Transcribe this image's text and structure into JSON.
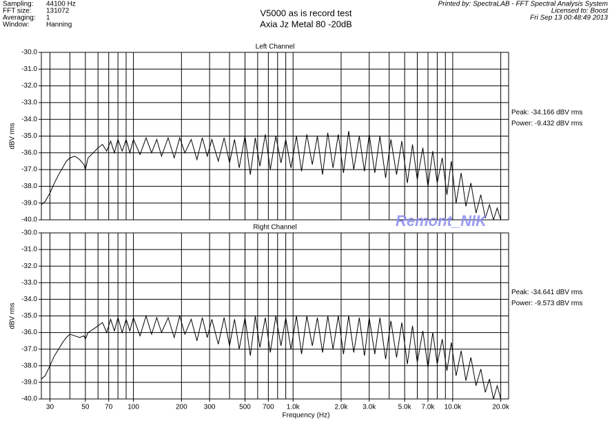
{
  "header": {
    "labels": [
      "Sampling:",
      "FFT size:",
      "Averaging:",
      "Window:"
    ],
    "values": [
      "44100 Hz",
      "131072",
      "1",
      "Hanning"
    ],
    "title": "V5000  as is record test",
    "subtitle": "Axia Jz Metal 80 -20dB",
    "printed_by": "Printed by: SpectraLAB - FFT Spectral Analysis System",
    "licensed": "Licensed to: Boost",
    "date": "Fri Sep 13 00:48:49 2013"
  },
  "watermark": "Remont_NIK",
  "chart_data": [
    {
      "type": "line",
      "title": "Left Channel",
      "ylabel": "dBV rms",
      "log_x": true,
      "grid": true,
      "annotations": [
        "Peak: -34.166 dBV rms",
        "Power: -9.432 dBV rms"
      ],
      "xlim": [
        26.5,
        22400
      ],
      "ylim": [
        -40,
        -30
      ],
      "yticks": [
        {
          "value": -30,
          "label": "-30.0"
        },
        {
          "value": -31,
          "label": "-31.0"
        },
        {
          "value": -32,
          "label": "-32.0"
        },
        {
          "value": -33,
          "label": "-33.0"
        },
        {
          "value": -34,
          "label": "-34.0"
        },
        {
          "value": -35,
          "label": "-35.0"
        },
        {
          "value": -36,
          "label": "-36.0"
        },
        {
          "value": -37,
          "label": "-37.0"
        },
        {
          "value": -38,
          "label": "-38.0"
        },
        {
          "value": -39,
          "label": "-39.0"
        },
        {
          "value": -40,
          "label": "-40.0"
        }
      ],
      "xgrid": [
        30,
        40,
        50,
        60,
        70,
        80,
        90,
        100,
        200,
        300,
        400,
        500,
        600,
        700,
        800,
        900,
        1000,
        2000,
        3000,
        4000,
        5000,
        6000,
        7000,
        8000,
        9000,
        10000,
        20000
      ],
      "series": [
        {
          "color": "#000000",
          "x": [
            26.5,
            28,
            30,
            32,
            34,
            36,
            38,
            40,
            43,
            46,
            49,
            50,
            52,
            56,
            60,
            64,
            68,
            72,
            76,
            80,
            85,
            90,
            95,
            100,
            110,
            120,
            130,
            140,
            150,
            165,
            180,
            195,
            210,
            230,
            250,
            270,
            290,
            310,
            340,
            370,
            400,
            430,
            460,
            500,
            540,
            580,
            620,
            670,
            720,
            780,
            840,
            900,
            970,
            1050,
            1130,
            1220,
            1320,
            1420,
            1530,
            1650,
            1780,
            1920,
            2070,
            2230,
            2400,
            2600,
            2800,
            3000,
            3250,
            3500,
            3800,
            4100,
            4450,
            4800,
            5200,
            5600,
            6000,
            6500,
            7000,
            7500,
            8000,
            8600,
            9200,
            9800,
            10500,
            11300,
            12100,
            13000,
            14000,
            15000,
            16000,
            17000,
            18000,
            19000,
            20000
          ],
          "values": [
            -39.1,
            -38.9,
            -38.4,
            -37.8,
            -37.3,
            -36.9,
            -36.5,
            -36.3,
            -36.2,
            -36.4,
            -36.7,
            -37.0,
            -36.3,
            -36.0,
            -35.7,
            -35.5,
            -35.9,
            -35.3,
            -36.0,
            -35.2,
            -35.9,
            -35.2,
            -36.0,
            -35.2,
            -36.1,
            -35.1,
            -36.0,
            -35.2,
            -36.2,
            -35.1,
            -36.3,
            -35.1,
            -36.0,
            -35.2,
            -36.4,
            -35.1,
            -36.2,
            -35.2,
            -36.5,
            -35.1,
            -36.6,
            -35.2,
            -36.9,
            -35.0,
            -37.3,
            -35.1,
            -36.8,
            -34.9,
            -37.0,
            -35.0,
            -36.6,
            -35.2,
            -36.9,
            -35.0,
            -37.1,
            -34.9,
            -36.7,
            -35.0,
            -37.3,
            -34.8,
            -36.9,
            -34.9,
            -37.2,
            -34.7,
            -37.0,
            -35.0,
            -37.1,
            -34.9,
            -37.2,
            -35.0,
            -37.5,
            -35.2,
            -37.3,
            -35.3,
            -37.8,
            -35.5,
            -37.6,
            -35.7,
            -38.0,
            -35.9,
            -37.8,
            -36.3,
            -38.5,
            -36.5,
            -39.0,
            -37.2,
            -39.2,
            -37.8,
            -39.6,
            -38.5,
            -39.9,
            -39.1,
            -40.0,
            -39.3,
            -40.0
          ]
        }
      ]
    },
    {
      "type": "line",
      "title": "Right Channel",
      "ylabel": "dBV rms",
      "xlabel": "Frequency (Hz)",
      "log_x": true,
      "grid": true,
      "annotations": [
        "Peak: -34.641 dBV rms",
        "Power: -9.573 dBV rms"
      ],
      "xlim": [
        26.5,
        22400
      ],
      "ylim": [
        -40,
        -30
      ],
      "yticks": [
        {
          "value": -30,
          "label": "-30.0"
        },
        {
          "value": -31,
          "label": "-31.0"
        },
        {
          "value": -32,
          "label": "-32.0"
        },
        {
          "value": -33,
          "label": "-33.0"
        },
        {
          "value": -34,
          "label": "-34.0"
        },
        {
          "value": -35,
          "label": "-35.0"
        },
        {
          "value": -36,
          "label": "-36.0"
        },
        {
          "value": -37,
          "label": "-37.0"
        },
        {
          "value": -38,
          "label": "-38.0"
        },
        {
          "value": -39,
          "label": "-39.0"
        },
        {
          "value": -40,
          "label": "-40.0"
        }
      ],
      "xticks": [
        30,
        50,
        70,
        100,
        200,
        300,
        500,
        700,
        {
          "value": 1000,
          "label": "1.0k"
        },
        {
          "value": 2000,
          "label": "2.0k"
        },
        {
          "value": 3000,
          "label": "3.0k"
        },
        {
          "value": 5000,
          "label": "5.0k"
        },
        {
          "value": 7000,
          "label": "7.0k"
        },
        {
          "value": 10000,
          "label": "10.0k"
        },
        {
          "value": 20000,
          "label": "20.0k"
        }
      ],
      "xminor": [
        40,
        60,
        80,
        90,
        400,
        600,
        800,
        900,
        4000,
        6000,
        8000,
        9000
      ],
      "series": [
        {
          "color": "#000000",
          "x": [
            26.5,
            28,
            30,
            32,
            34,
            36,
            38,
            40,
            43,
            46,
            49,
            50,
            52,
            56,
            60,
            64,
            68,
            72,
            76,
            80,
            85,
            90,
            95,
            100,
            110,
            120,
            130,
            140,
            150,
            165,
            180,
            195,
            210,
            230,
            250,
            270,
            290,
            310,
            340,
            370,
            400,
            430,
            460,
            500,
            540,
            580,
            620,
            670,
            720,
            780,
            840,
            900,
            970,
            1050,
            1130,
            1220,
            1320,
            1420,
            1530,
            1650,
            1780,
            1920,
            2070,
            2230,
            2400,
            2600,
            2800,
            3000,
            3250,
            3500,
            3800,
            4100,
            4450,
            4800,
            5200,
            5600,
            6000,
            6500,
            7000,
            7500,
            8000,
            8600,
            9200,
            9800,
            10500,
            11300,
            12100,
            13000,
            14000,
            15000,
            16000,
            17000,
            18000,
            19000,
            20000
          ],
          "values": [
            -38.8,
            -38.6,
            -38.0,
            -37.4,
            -37.0,
            -36.6,
            -36.3,
            -36.1,
            -36.2,
            -36.3,
            -36.2,
            -36.4,
            -36.0,
            -35.8,
            -35.6,
            -35.4,
            -36.0,
            -35.2,
            -35.9,
            -35.1,
            -36.0,
            -35.2,
            -35.9,
            -35.1,
            -36.2,
            -35.0,
            -36.1,
            -35.1,
            -36.0,
            -35.1,
            -36.3,
            -35.0,
            -36.1,
            -35.2,
            -36.5,
            -35.1,
            -36.3,
            -35.2,
            -36.7,
            -35.1,
            -36.8,
            -35.2,
            -37.0,
            -35.1,
            -37.4,
            -35.0,
            -36.9,
            -35.1,
            -37.2,
            -35.0,
            -36.8,
            -35.1,
            -37.0,
            -35.0,
            -37.3,
            -35.0,
            -36.8,
            -35.1,
            -37.2,
            -35.0,
            -37.0,
            -35.0,
            -37.3,
            -35.0,
            -37.2,
            -35.1,
            -37.4,
            -35.1,
            -37.3,
            -35.1,
            -37.6,
            -35.3,
            -37.5,
            -35.4,
            -37.9,
            -35.6,
            -37.8,
            -35.9,
            -38.1,
            -36.0,
            -37.9,
            -36.4,
            -38.3,
            -36.6,
            -38.6,
            -37.1,
            -38.9,
            -37.5,
            -39.2,
            -38.2,
            -39.6,
            -38.8,
            -40.0,
            -39.2,
            -40.0
          ]
        }
      ]
    }
  ]
}
